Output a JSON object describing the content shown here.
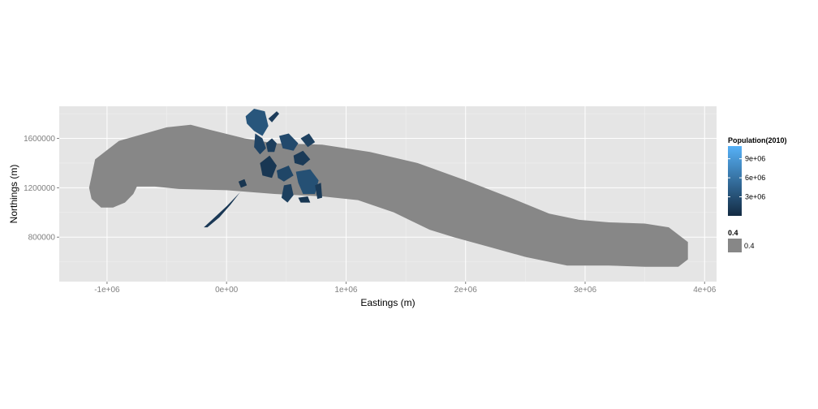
{
  "chart_data": {
    "type": "map",
    "xlabel": "Eastings (m)",
    "ylabel": "Northings (m)",
    "x_ticks": [
      -1000000,
      0,
      1000000,
      2000000,
      3000000,
      4000000
    ],
    "x_tick_labels": [
      "-1e+06",
      "0e+00",
      "1e+06",
      "2e+06",
      "3e+06",
      "4e+06"
    ],
    "y_ticks": [
      800000,
      1200000,
      1600000
    ],
    "y_tick_labels": [
      "800000",
      "1200000",
      "1600000"
    ],
    "xlim": [
      -1400000,
      4100000
    ],
    "ylim": [
      440000,
      1860000
    ],
    "grid": true,
    "legend_position": "right",
    "buffer_fill": "#878787",
    "buffer_outline": [
      [
        -1150000,
        1200000
      ],
      [
        -1100000,
        1430000
      ],
      [
        -900000,
        1580000
      ],
      [
        -500000,
        1690000
      ],
      [
        -300000,
        1710000
      ],
      [
        -100000,
        1660000
      ],
      [
        150000,
        1600000
      ],
      [
        400000,
        1560000
      ],
      [
        800000,
        1550000
      ],
      [
        1200000,
        1490000
      ],
      [
        1600000,
        1400000
      ],
      [
        2000000,
        1260000
      ],
      [
        2400000,
        1110000
      ],
      [
        2700000,
        990000
      ],
      [
        2950000,
        940000
      ],
      [
        3200000,
        920000
      ],
      [
        3500000,
        910000
      ],
      [
        3700000,
        880000
      ],
      [
        3860000,
        760000
      ],
      [
        3860000,
        620000
      ],
      [
        3780000,
        560000
      ],
      [
        3500000,
        560000
      ],
      [
        3200000,
        570000
      ],
      [
        2850000,
        570000
      ],
      [
        2500000,
        640000
      ],
      [
        2200000,
        720000
      ],
      [
        1900000,
        800000
      ],
      [
        1700000,
        860000
      ],
      [
        1400000,
        1000000
      ],
      [
        1100000,
        1100000
      ],
      [
        800000,
        1130000
      ],
      [
        400000,
        1150000
      ],
      [
        0,
        1180000
      ],
      [
        -400000,
        1190000
      ],
      [
        -600000,
        1210000
      ],
      [
        -750000,
        1210000
      ],
      [
        -780000,
        1150000
      ],
      [
        -850000,
        1080000
      ],
      [
        -950000,
        1040000
      ],
      [
        -1050000,
        1040000
      ],
      [
        -1130000,
        1110000
      ]
    ],
    "population_regions": [
      {
        "value": 3500000,
        "points": [
          [
            160000,
            1780000
          ],
          [
            230000,
            1840000
          ],
          [
            320000,
            1820000
          ],
          [
            350000,
            1700000
          ],
          [
            300000,
            1620000
          ],
          [
            230000,
            1660000
          ],
          [
            170000,
            1720000
          ]
        ]
      },
      {
        "value": 2000000,
        "points": [
          [
            240000,
            1640000
          ],
          [
            300000,
            1600000
          ],
          [
            330000,
            1520000
          ],
          [
            280000,
            1470000
          ],
          [
            230000,
            1530000
          ]
        ]
      },
      {
        "value": 1500000,
        "points": [
          [
            330000,
            1560000
          ],
          [
            380000,
            1600000
          ],
          [
            420000,
            1560000
          ],
          [
            400000,
            1490000
          ],
          [
            345000,
            1490000
          ]
        ]
      },
      {
        "value": 2500000,
        "points": [
          [
            440000,
            1620000
          ],
          [
            520000,
            1640000
          ],
          [
            600000,
            1560000
          ],
          [
            560000,
            1500000
          ],
          [
            470000,
            1520000
          ]
        ]
      },
      {
        "value": 1200000,
        "points": [
          [
            560000,
            1460000
          ],
          [
            640000,
            1500000
          ],
          [
            700000,
            1430000
          ],
          [
            640000,
            1380000
          ],
          [
            570000,
            1400000
          ]
        ]
      },
      {
        "value": 1800000,
        "points": [
          [
            620000,
            1600000
          ],
          [
            690000,
            1640000
          ],
          [
            740000,
            1570000
          ],
          [
            680000,
            1530000
          ]
        ]
      },
      {
        "value": 1000000,
        "points": [
          [
            280000,
            1400000
          ],
          [
            360000,
            1460000
          ],
          [
            420000,
            1380000
          ],
          [
            380000,
            1280000
          ],
          [
            300000,
            1300000
          ]
        ]
      },
      {
        "value": 2200000,
        "points": [
          [
            420000,
            1340000
          ],
          [
            520000,
            1380000
          ],
          [
            560000,
            1300000
          ],
          [
            480000,
            1250000
          ],
          [
            430000,
            1280000
          ]
        ]
      },
      {
        "value": 3000000,
        "points": [
          [
            580000,
            1330000
          ],
          [
            700000,
            1350000
          ],
          [
            770000,
            1260000
          ],
          [
            740000,
            1150000
          ],
          [
            640000,
            1150000
          ],
          [
            600000,
            1240000
          ]
        ]
      },
      {
        "value": 1700000,
        "points": [
          [
            480000,
            1220000
          ],
          [
            540000,
            1230000
          ],
          [
            560000,
            1140000
          ],
          [
            510000,
            1080000
          ],
          [
            460000,
            1120000
          ]
        ]
      },
      {
        "value": 900000,
        "points": [
          [
            600000,
            1120000
          ],
          [
            680000,
            1130000
          ],
          [
            700000,
            1080000
          ],
          [
            620000,
            1080000
          ]
        ]
      },
      {
        "value": 1300000,
        "points": [
          [
            740000,
            1220000
          ],
          [
            790000,
            1240000
          ],
          [
            800000,
            1120000
          ],
          [
            760000,
            1110000
          ]
        ]
      },
      {
        "value": 800000,
        "points": [
          [
            100000,
            1250000
          ],
          [
            150000,
            1270000
          ],
          [
            170000,
            1220000
          ],
          [
            120000,
            1200000
          ]
        ]
      },
      {
        "value": 1100000,
        "points": [
          [
            -190000,
            880000
          ],
          [
            -100000,
            960000
          ],
          [
            0,
            1050000
          ],
          [
            100000,
            1150000
          ],
          [
            140000,
            1190000
          ],
          [
            110000,
            1160000
          ],
          [
            30000,
            1060000
          ],
          [
            -60000,
            960000
          ],
          [
            -160000,
            880000
          ]
        ]
      },
      {
        "value": 1400000,
        "points": [
          [
            350000,
            1760000
          ],
          [
            420000,
            1820000
          ],
          [
            440000,
            1800000
          ],
          [
            380000,
            1730000
          ]
        ]
      }
    ],
    "legend": [
      {
        "title": "Population(2010)",
        "type": "colorbar",
        "labels": [
          "9e+06",
          "6e+06",
          "3e+06"
        ],
        "values": [
          9000000,
          6000000,
          3000000
        ],
        "range": [
          0,
          11000000
        ],
        "low_color": "#132B43",
        "high_color": "#56B1F7"
      },
      {
        "title": "0.4",
        "type": "key",
        "labels": [
          "0.4"
        ],
        "color": "#878787"
      }
    ]
  }
}
